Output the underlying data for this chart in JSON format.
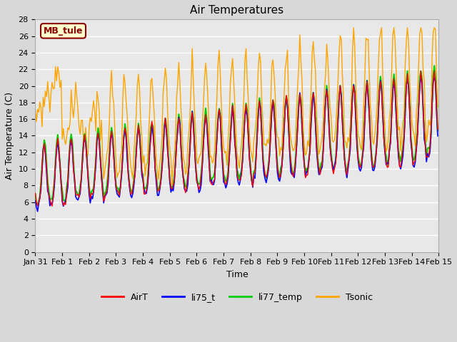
{
  "title": "Air Temperatures",
  "xlabel": "Time",
  "ylabel": "Air Temperature (C)",
  "ylim": [
    0,
    28
  ],
  "annotation_text": "MB_tule",
  "annotation_bg": "#ffffcc",
  "annotation_border": "#8b0000",
  "annotation_text_color": "#8b0000",
  "series_colors": {
    "AirT": "#ff0000",
    "li75_t": "#0000ff",
    "li77_temp": "#00cc00",
    "Tsonic": "#ffa500"
  },
  "series_linewidths": {
    "AirT": 1.0,
    "li75_t": 1.2,
    "li77_temp": 1.5,
    "Tsonic": 1.0
  },
  "start_day": 30,
  "end_day": 45,
  "xtick_labels": [
    "Jan 31",
    "Feb 1",
    "Feb 2",
    "Feb 3",
    "Feb 4",
    "Feb 5",
    "Feb 6",
    "Feb 7",
    "Feb 8",
    "Feb 9",
    "Feb 10",
    "Feb 11",
    "Feb 12",
    "Feb 13",
    "Feb 14",
    "Feb 15"
  ],
  "xtick_positions": [
    30,
    31,
    32,
    33,
    34,
    35,
    36,
    37,
    38,
    39,
    40,
    41,
    42,
    43,
    44,
    45
  ],
  "ytick_positions": [
    0,
    2,
    4,
    6,
    8,
    10,
    12,
    14,
    16,
    18,
    20,
    22,
    24,
    26,
    28
  ],
  "title_fontsize": 11,
  "axis_label_fontsize": 9,
  "tick_fontsize": 8,
  "legend_fontsize": 9
}
